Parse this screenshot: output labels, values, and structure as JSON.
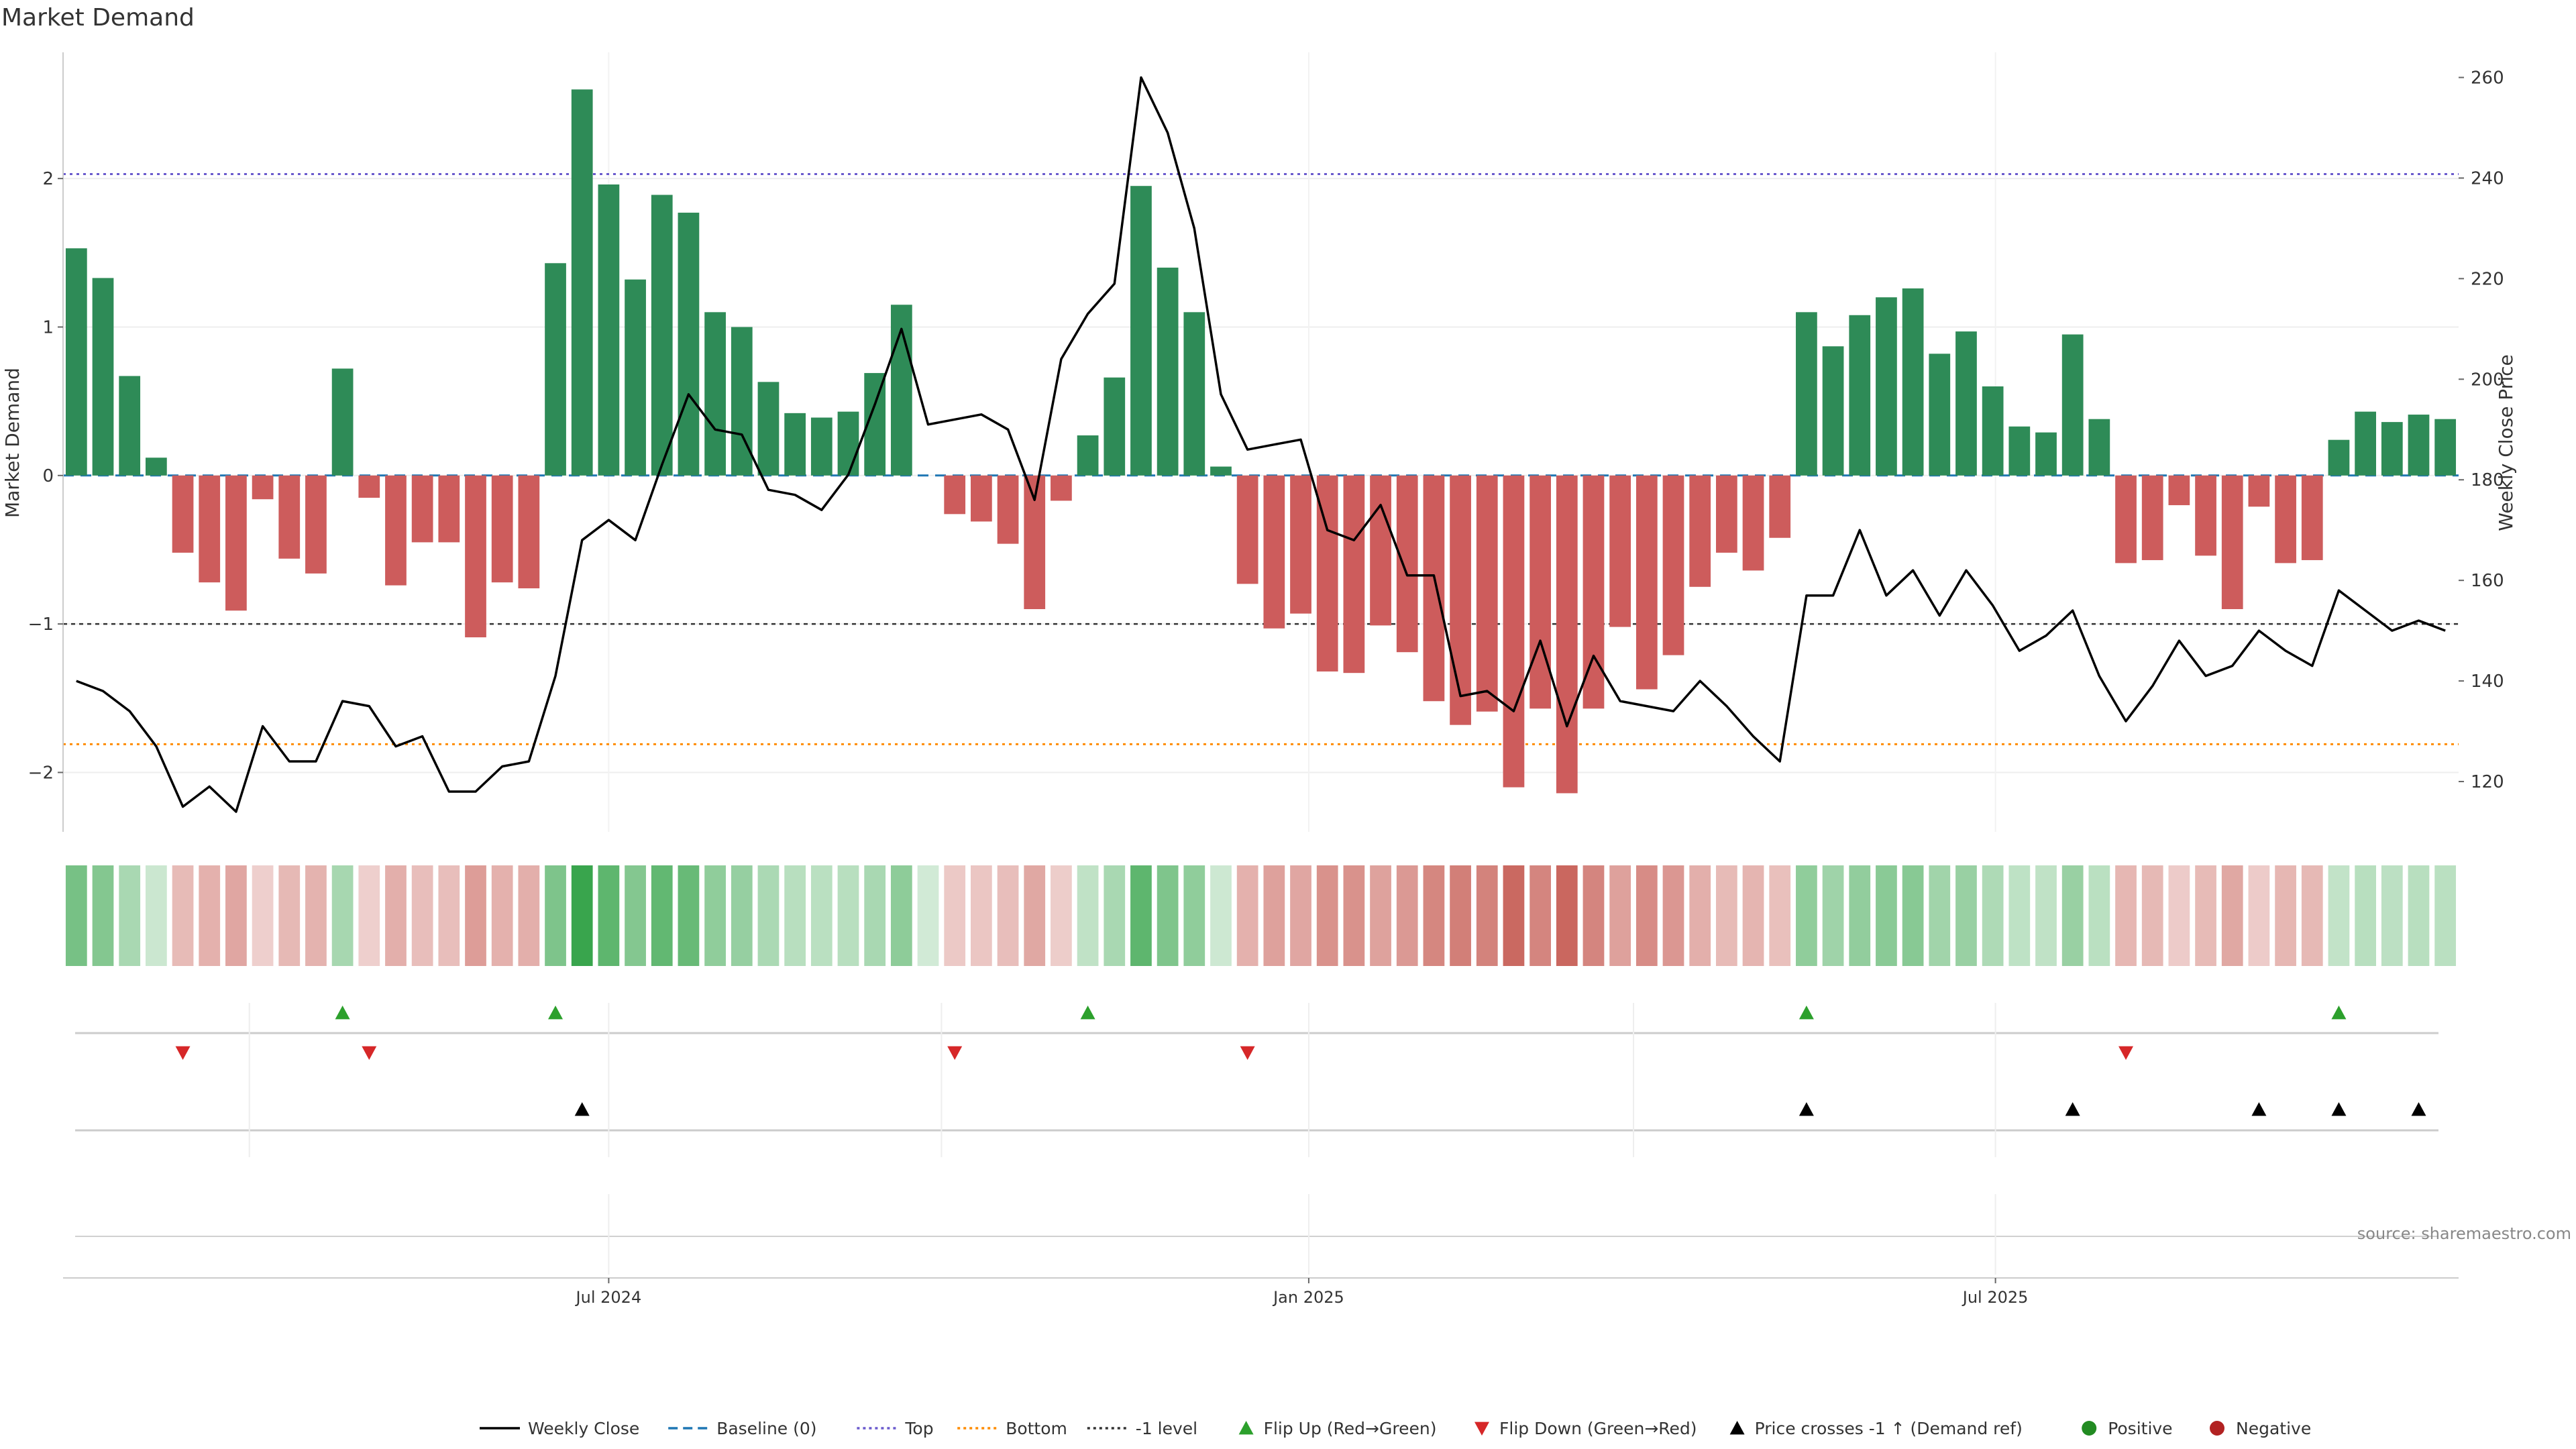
{
  "chart_data": {
    "type": "bar",
    "title": "Market Demand",
    "ylabel_left": "Market Demand",
    "ylabel_right": "Weekly Close Price",
    "ylim_left": [
      -2.4,
      2.85
    ],
    "ylim_right": [
      110,
      265
    ],
    "y_ticks_left": [
      -2,
      -1,
      0,
      1,
      2
    ],
    "y_ticks_right": [
      120,
      140,
      160,
      180,
      200,
      220,
      240,
      260
    ],
    "x_tick_labels": [
      {
        "index": 20.5,
        "label": "Jul 2024"
      },
      {
        "index": 46.8,
        "label": "Jan 2025"
      },
      {
        "index": 72.6,
        "label": "Jul 2025"
      }
    ],
    "reference_lines": {
      "baseline": 0,
      "top": 2.03,
      "bottom": -1.81,
      "minus_one": -1
    },
    "weeks": 90,
    "series": [
      {
        "name": "Market Demand",
        "type": "bar",
        "values": [
          1.53,
          1.33,
          0.67,
          0.12,
          -0.52,
          -0.72,
          -0.91,
          -0.16,
          -0.56,
          -0.66,
          0.72,
          -0.15,
          -0.74,
          -0.45,
          -0.45,
          -1.09,
          -0.72,
          -0.76,
          1.43,
          2.6,
          1.96,
          1.32,
          1.89,
          1.77,
          1.1,
          1.0,
          0.63,
          0.42,
          0.39,
          0.43,
          0.69,
          1.15,
          0.0,
          -0.26,
          -0.31,
          -0.46,
          -0.9,
          -0.17,
          0.27,
          0.66,
          1.95,
          1.4,
          1.1,
          0.06,
          -0.73,
          -1.03,
          -0.93,
          -1.32,
          -1.33,
          -1.01,
          -1.19,
          -1.52,
          -1.68,
          -1.59,
          -2.1,
          -1.57,
          -2.14,
          -1.57,
          -1.02,
          -1.44,
          -1.21,
          -0.75,
          -0.52,
          -0.64,
          -0.42,
          1.1,
          0.87,
          1.08,
          1.2,
          1.26,
          0.82,
          0.97,
          0.6,
          0.33,
          0.29,
          0.95,
          0.38,
          -0.59,
          -0.57,
          -0.2,
          -0.54,
          -0.9,
          -0.21,
          -0.59,
          -0.57,
          0.24,
          0.43,
          0.36,
          0.41,
          0.38
        ]
      },
      {
        "name": "Weekly Close",
        "type": "line",
        "values": [
          140,
          138,
          134,
          127,
          115,
          119,
          114,
          131,
          124,
          124,
          136,
          135,
          127,
          129,
          118,
          118,
          123,
          124,
          141,
          168,
          172,
          168,
          183,
          197,
          190,
          189,
          178,
          177,
          174,
          181,
          195,
          210,
          191,
          192,
          193,
          190,
          176,
          204,
          213,
          219,
          260,
          249,
          230,
          197,
          186,
          187,
          188,
          170,
          168,
          175,
          161,
          161,
          137,
          138,
          134,
          148,
          131,
          145,
          136,
          135,
          134,
          140,
          135,
          129,
          124,
          157,
          157,
          170,
          157,
          162,
          153,
          162,
          155,
          146,
          149,
          154,
          141,
          132,
          139,
          148,
          141,
          143,
          150,
          146,
          143,
          158,
          154,
          150,
          152,
          150
        ]
      }
    ],
    "flip_up_weeks": [
      10,
      18,
      38,
      65,
      85
    ],
    "flip_down_weeks": [
      4,
      11,
      33,
      44,
      77
    ],
    "price_cross_weeks": [
      19,
      65,
      75,
      82,
      85,
      88
    ],
    "source": "source: sharemaestro.com",
    "colors": {
      "positive": "#2e8b57",
      "negative": "#cd5c5c",
      "line": "#000000",
      "baseline": "#1f77b4",
      "top": "#6a5acd",
      "bottom": "#ff8c00",
      "minus_one": "#333333",
      "flip_up": "#2ca02c",
      "flip_down": "#d62728",
      "legend_positive": "#228b22",
      "legend_negative": "#b22222"
    },
    "legend": [
      {
        "label": "Weekly Close",
        "kind": "line",
        "color": "#000000"
      },
      {
        "label": "Baseline (0)",
        "kind": "dash",
        "color": "#1f77b4"
      },
      {
        "label": "Top",
        "kind": "dot",
        "color": "#6a5acd"
      },
      {
        "label": "Bottom",
        "kind": "dot",
        "color": "#ff8c00"
      },
      {
        "label": "-1 level",
        "kind": "dot",
        "color": "#333333"
      },
      {
        "label": "Flip Up (Red→Green)",
        "kind": "tri-up",
        "color": "#2ca02c"
      },
      {
        "label": "Flip Down (Green→Red)",
        "kind": "tri-down",
        "color": "#d62728"
      },
      {
        "label": "Price crosses -1 ↑ (Demand ref)",
        "kind": "tri-up",
        "color": "#000000"
      },
      {
        "label": "Positive",
        "kind": "circle",
        "color": "#228b22"
      },
      {
        "label": "Negative",
        "kind": "circle",
        "color": "#b22222"
      }
    ]
  }
}
